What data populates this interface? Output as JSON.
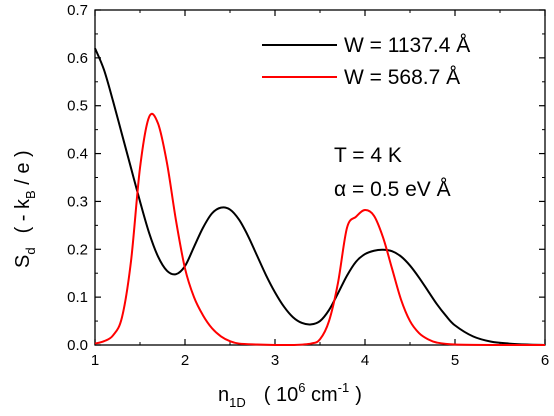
{
  "chart_data": {
    "type": "line",
    "xlabel": {
      "main": "n",
      "sub": "1D",
      "unit_open": "( 10",
      "unit_sup": "6",
      "unit_mid": " cm",
      "unit_sup2": "-1",
      "unit_close": ")"
    },
    "ylabel": {
      "main": "S",
      "sub_d": "d",
      "unit_open": "( - k",
      "sub_b": "B",
      "unit_close": " / e )"
    },
    "xlim": [
      1,
      6
    ],
    "ylim": [
      0,
      0.7
    ],
    "xticks": [
      1,
      2,
      3,
      4,
      5,
      6
    ],
    "yticks": [
      0.0,
      0.1,
      0.2,
      0.3,
      0.4,
      0.5,
      0.6,
      0.7
    ],
    "ytick_labels": [
      "0.0",
      "0.1",
      "0.2",
      "0.3",
      "0.4",
      "0.5",
      "0.6",
      "0.7"
    ],
    "xtick_labels": [
      "1",
      "2",
      "3",
      "4",
      "5",
      "6"
    ],
    "grid": false,
    "legend_position": "top-right",
    "series": [
      {
        "name": "W = 1137.4  Å",
        "color": "#000000",
        "x": [
          1.0,
          1.1,
          1.2,
          1.3,
          1.4,
          1.5,
          1.6,
          1.7,
          1.8,
          1.9,
          2.0,
          2.1,
          2.2,
          2.3,
          2.4,
          2.5,
          2.6,
          2.7,
          2.8,
          2.9,
          3.0,
          3.1,
          3.2,
          3.3,
          3.4,
          3.5,
          3.6,
          3.7,
          3.8,
          3.9,
          4.0,
          4.1,
          4.2,
          4.3,
          4.4,
          4.5,
          4.6,
          4.7,
          4.8,
          4.9,
          5.0,
          5.2,
          5.4,
          5.6,
          5.8,
          6.0
        ],
        "y": [
          0.62,
          0.575,
          0.51,
          0.44,
          0.37,
          0.3,
          0.235,
          0.185,
          0.155,
          0.148,
          0.165,
          0.205,
          0.245,
          0.275,
          0.287,
          0.283,
          0.262,
          0.228,
          0.187,
          0.146,
          0.11,
          0.08,
          0.058,
          0.046,
          0.043,
          0.05,
          0.073,
          0.108,
          0.145,
          0.174,
          0.19,
          0.197,
          0.199,
          0.196,
          0.185,
          0.166,
          0.141,
          0.113,
          0.085,
          0.061,
          0.041,
          0.018,
          0.007,
          0.003,
          0.001,
          0.0
        ]
      },
      {
        "name": "W = 568.7  Å",
        "color": "#ff0000",
        "x": [
          1.0,
          1.1,
          1.2,
          1.3,
          1.4,
          1.5,
          1.6,
          1.7,
          1.8,
          1.9,
          2.0,
          2.1,
          2.2,
          2.3,
          2.4,
          2.5,
          2.6,
          2.8,
          3.0,
          3.2,
          3.4,
          3.5,
          3.6,
          3.7,
          3.8,
          3.9,
          4.0,
          4.1,
          4.2,
          4.3,
          4.4,
          4.5,
          4.6,
          4.7,
          4.8,
          5.0,
          5.5,
          6.0
        ],
        "y": [
          0.003,
          0.008,
          0.02,
          0.058,
          0.175,
          0.37,
          0.476,
          0.463,
          0.38,
          0.26,
          0.16,
          0.1,
          0.062,
          0.035,
          0.018,
          0.008,
          0.003,
          0.001,
          0.0,
          0.0,
          0.003,
          0.012,
          0.05,
          0.13,
          0.245,
          0.268,
          0.282,
          0.27,
          0.225,
          0.16,
          0.095,
          0.05,
          0.025,
          0.012,
          0.005,
          0.001,
          0.0,
          0.0
        ]
      }
    ],
    "annotations": [
      "T = 4 K",
      "α = 0.5 eV  Å"
    ]
  }
}
